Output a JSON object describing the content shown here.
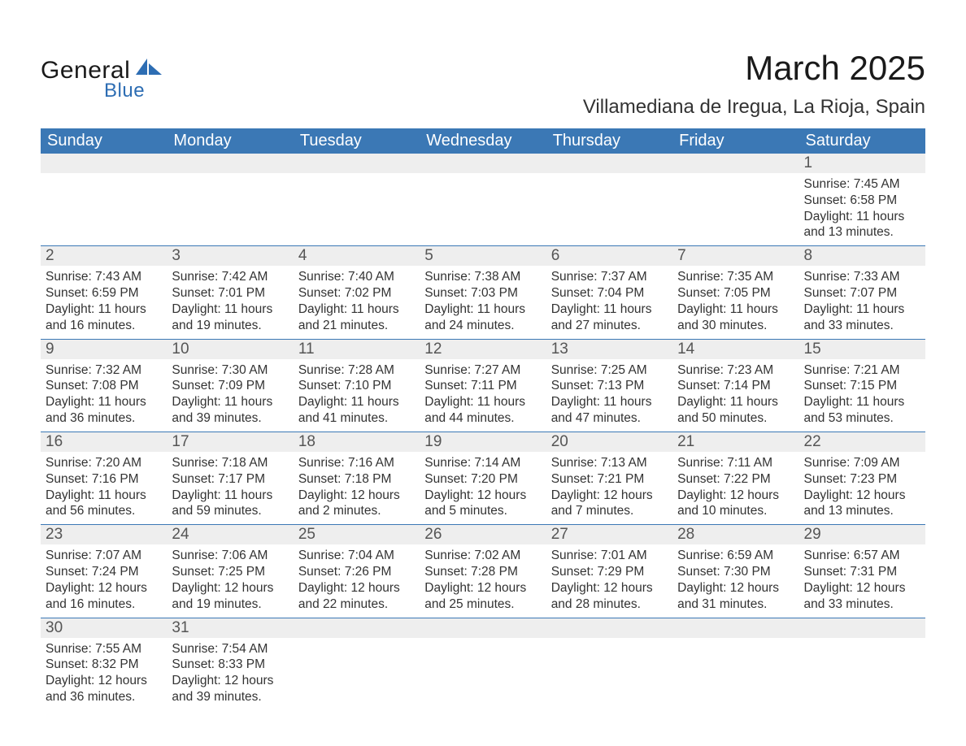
{
  "brand": {
    "name_top": "General",
    "name_bottom": "Blue",
    "accent_color": "#2d6db3"
  },
  "header": {
    "month_title": "March 2025",
    "location": "Villamediana de Iregua, La Rioja, Spain"
  },
  "calendar": {
    "header_bg": "#3b78b5",
    "header_fg": "#ffffff",
    "daynum_bg": "#eeeeee",
    "border_color": "#3b78b5",
    "days_of_week": [
      "Sunday",
      "Monday",
      "Tuesday",
      "Wednesday",
      "Thursday",
      "Friday",
      "Saturday"
    ],
    "weeks": [
      [
        {
          "day": "",
          "lines": []
        },
        {
          "day": "",
          "lines": []
        },
        {
          "day": "",
          "lines": []
        },
        {
          "day": "",
          "lines": []
        },
        {
          "day": "",
          "lines": []
        },
        {
          "day": "",
          "lines": []
        },
        {
          "day": "1",
          "lines": [
            "Sunrise: 7:45 AM",
            "Sunset: 6:58 PM",
            "Daylight: 11 hours and 13 minutes."
          ]
        }
      ],
      [
        {
          "day": "2",
          "lines": [
            "Sunrise: 7:43 AM",
            "Sunset: 6:59 PM",
            "Daylight: 11 hours and 16 minutes."
          ]
        },
        {
          "day": "3",
          "lines": [
            "Sunrise: 7:42 AM",
            "Sunset: 7:01 PM",
            "Daylight: 11 hours and 19 minutes."
          ]
        },
        {
          "day": "4",
          "lines": [
            "Sunrise: 7:40 AM",
            "Sunset: 7:02 PM",
            "Daylight: 11 hours and 21 minutes."
          ]
        },
        {
          "day": "5",
          "lines": [
            "Sunrise: 7:38 AM",
            "Sunset: 7:03 PM",
            "Daylight: 11 hours and 24 minutes."
          ]
        },
        {
          "day": "6",
          "lines": [
            "Sunrise: 7:37 AM",
            "Sunset: 7:04 PM",
            "Daylight: 11 hours and 27 minutes."
          ]
        },
        {
          "day": "7",
          "lines": [
            "Sunrise: 7:35 AM",
            "Sunset: 7:05 PM",
            "Daylight: 11 hours and 30 minutes."
          ]
        },
        {
          "day": "8",
          "lines": [
            "Sunrise: 7:33 AM",
            "Sunset: 7:07 PM",
            "Daylight: 11 hours and 33 minutes."
          ]
        }
      ],
      [
        {
          "day": "9",
          "lines": [
            "Sunrise: 7:32 AM",
            "Sunset: 7:08 PM",
            "Daylight: 11 hours and 36 minutes."
          ]
        },
        {
          "day": "10",
          "lines": [
            "Sunrise: 7:30 AM",
            "Sunset: 7:09 PM",
            "Daylight: 11 hours and 39 minutes."
          ]
        },
        {
          "day": "11",
          "lines": [
            "Sunrise: 7:28 AM",
            "Sunset: 7:10 PM",
            "Daylight: 11 hours and 41 minutes."
          ]
        },
        {
          "day": "12",
          "lines": [
            "Sunrise: 7:27 AM",
            "Sunset: 7:11 PM",
            "Daylight: 11 hours and 44 minutes."
          ]
        },
        {
          "day": "13",
          "lines": [
            "Sunrise: 7:25 AM",
            "Sunset: 7:13 PM",
            "Daylight: 11 hours and 47 minutes."
          ]
        },
        {
          "day": "14",
          "lines": [
            "Sunrise: 7:23 AM",
            "Sunset: 7:14 PM",
            "Daylight: 11 hours and 50 minutes."
          ]
        },
        {
          "day": "15",
          "lines": [
            "Sunrise: 7:21 AM",
            "Sunset: 7:15 PM",
            "Daylight: 11 hours and 53 minutes."
          ]
        }
      ],
      [
        {
          "day": "16",
          "lines": [
            "Sunrise: 7:20 AM",
            "Sunset: 7:16 PM",
            "Daylight: 11 hours and 56 minutes."
          ]
        },
        {
          "day": "17",
          "lines": [
            "Sunrise: 7:18 AM",
            "Sunset: 7:17 PM",
            "Daylight: 11 hours and 59 minutes."
          ]
        },
        {
          "day": "18",
          "lines": [
            "Sunrise: 7:16 AM",
            "Sunset: 7:18 PM",
            "Daylight: 12 hours and 2 minutes."
          ]
        },
        {
          "day": "19",
          "lines": [
            "Sunrise: 7:14 AM",
            "Sunset: 7:20 PM",
            "Daylight: 12 hours and 5 minutes."
          ]
        },
        {
          "day": "20",
          "lines": [
            "Sunrise: 7:13 AM",
            "Sunset: 7:21 PM",
            "Daylight: 12 hours and 7 minutes."
          ]
        },
        {
          "day": "21",
          "lines": [
            "Sunrise: 7:11 AM",
            "Sunset: 7:22 PM",
            "Daylight: 12 hours and 10 minutes."
          ]
        },
        {
          "day": "22",
          "lines": [
            "Sunrise: 7:09 AM",
            "Sunset: 7:23 PM",
            "Daylight: 12 hours and 13 minutes."
          ]
        }
      ],
      [
        {
          "day": "23",
          "lines": [
            "Sunrise: 7:07 AM",
            "Sunset: 7:24 PM",
            "Daylight: 12 hours and 16 minutes."
          ]
        },
        {
          "day": "24",
          "lines": [
            "Sunrise: 7:06 AM",
            "Sunset: 7:25 PM",
            "Daylight: 12 hours and 19 minutes."
          ]
        },
        {
          "day": "25",
          "lines": [
            "Sunrise: 7:04 AM",
            "Sunset: 7:26 PM",
            "Daylight: 12 hours and 22 minutes."
          ]
        },
        {
          "day": "26",
          "lines": [
            "Sunrise: 7:02 AM",
            "Sunset: 7:28 PM",
            "Daylight: 12 hours and 25 minutes."
          ]
        },
        {
          "day": "27",
          "lines": [
            "Sunrise: 7:01 AM",
            "Sunset: 7:29 PM",
            "Daylight: 12 hours and 28 minutes."
          ]
        },
        {
          "day": "28",
          "lines": [
            "Sunrise: 6:59 AM",
            "Sunset: 7:30 PM",
            "Daylight: 12 hours and 31 minutes."
          ]
        },
        {
          "day": "29",
          "lines": [
            "Sunrise: 6:57 AM",
            "Sunset: 7:31 PM",
            "Daylight: 12 hours and 33 minutes."
          ]
        }
      ],
      [
        {
          "day": "30",
          "lines": [
            "Sunrise: 7:55 AM",
            "Sunset: 8:32 PM",
            "Daylight: 12 hours and 36 minutes."
          ]
        },
        {
          "day": "31",
          "lines": [
            "Sunrise: 7:54 AM",
            "Sunset: 8:33 PM",
            "Daylight: 12 hours and 39 minutes."
          ]
        },
        {
          "day": "",
          "lines": []
        },
        {
          "day": "",
          "lines": []
        },
        {
          "day": "",
          "lines": []
        },
        {
          "day": "",
          "lines": []
        },
        {
          "day": "",
          "lines": []
        }
      ]
    ]
  }
}
